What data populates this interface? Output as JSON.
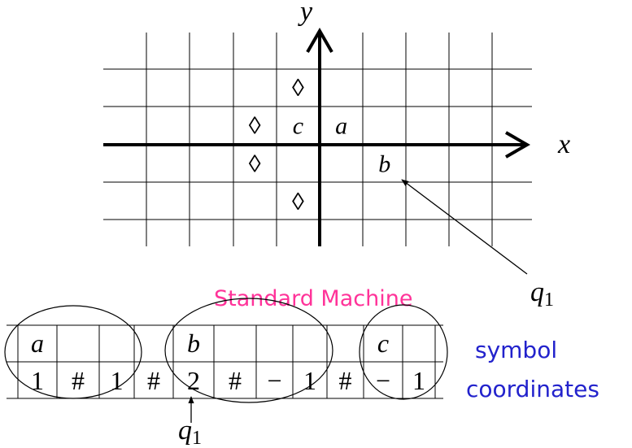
{
  "grid": {
    "axis_x_label": "x",
    "axis_y_label": "y",
    "cells": [
      {
        "symbol": "◊",
        "col": -1,
        "row": 2
      },
      {
        "symbol": "◊",
        "col": -2,
        "row": 1
      },
      {
        "symbol": "c",
        "col": -1,
        "row": 1,
        "italic": true
      },
      {
        "symbol": "a",
        "col": 0,
        "row": 1,
        "italic": true
      },
      {
        "symbol": "◊",
        "col": -2,
        "row": 0
      },
      {
        "symbol": "b",
        "col": 1,
        "row": 0,
        "italic": true
      },
      {
        "symbol": "◊",
        "col": -1,
        "row": -1
      }
    ],
    "head_label": "q",
    "head_sub": "1"
  },
  "tape": {
    "title": "Standard Machine",
    "top_row": [
      "a",
      "",
      "",
      "",
      "b",
      "",
      "",
      "",
      "",
      "c",
      ""
    ],
    "bottom_row": [
      "1",
      "#",
      "1",
      "#",
      "2",
      "#",
      "−",
      "1",
      "#",
      "−",
      "1"
    ],
    "head_label": "q",
    "head_sub": "1"
  },
  "legend": {
    "symbol_label": "symbol",
    "coordinates_label": "coordinates"
  },
  "colors": {
    "title": "#ff3399",
    "legend": "#2222cc",
    "line": "#000000",
    "grid": "#000000"
  }
}
